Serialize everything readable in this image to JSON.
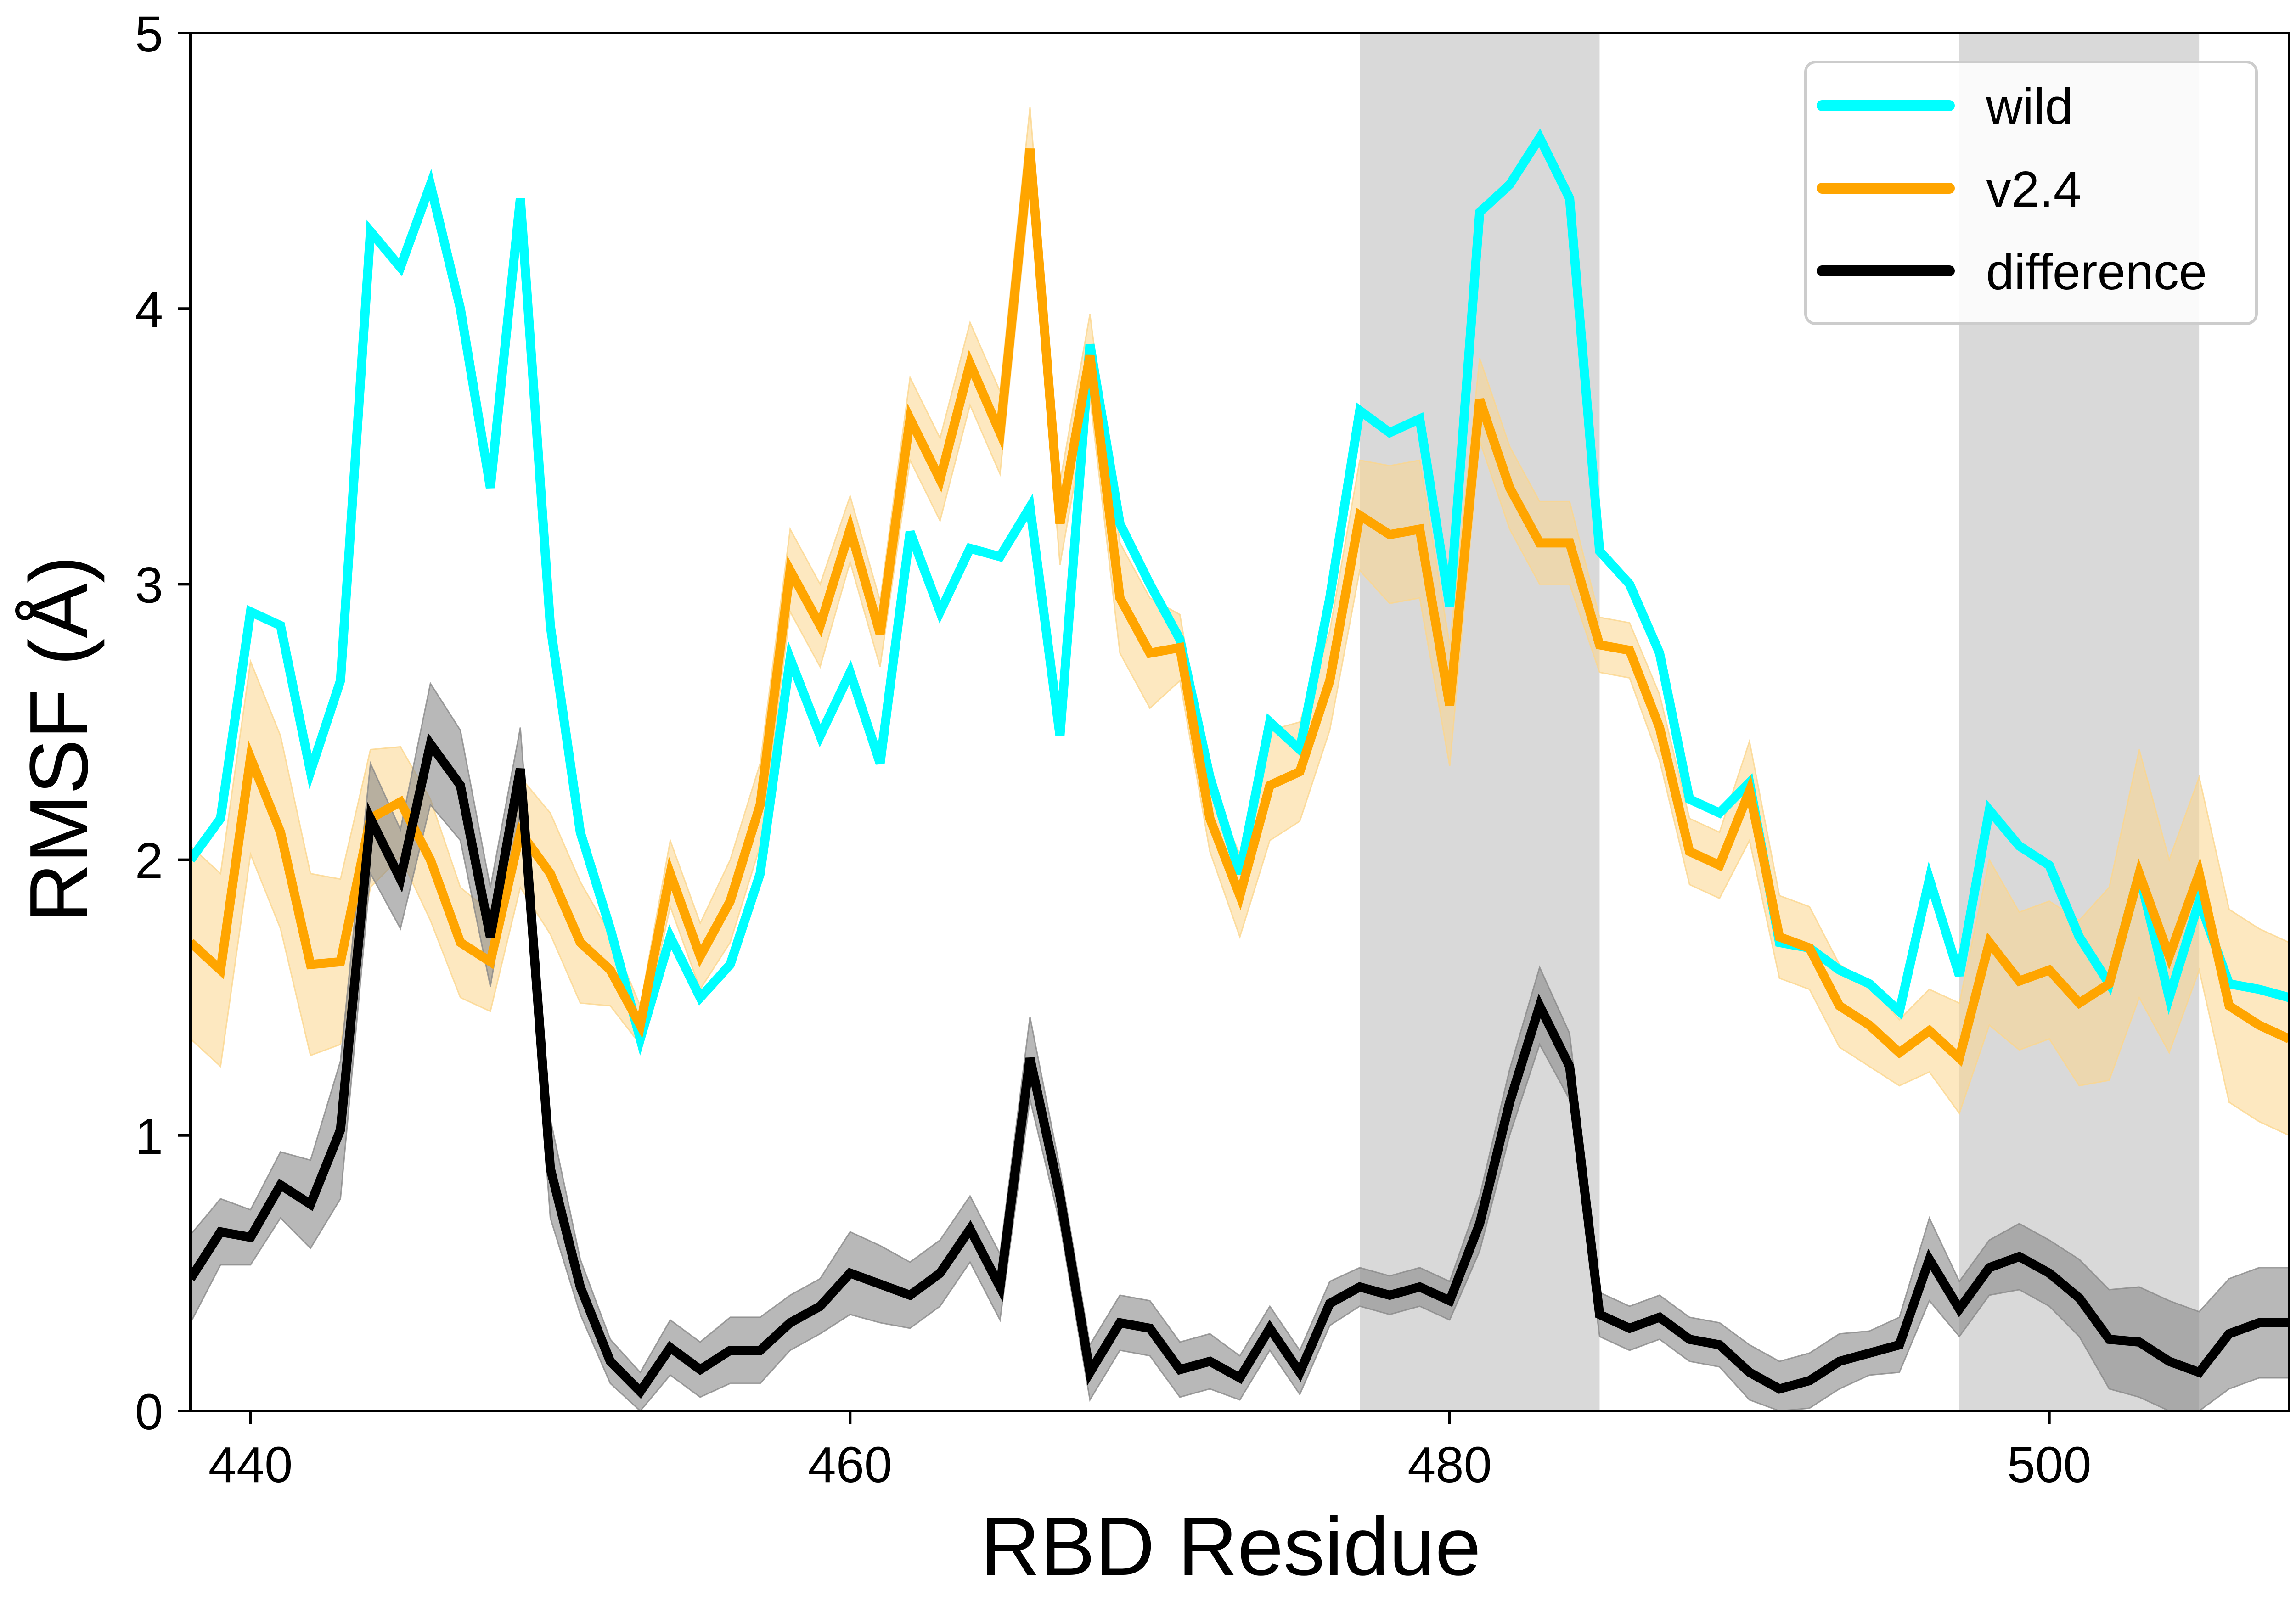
{
  "chart_data": {
    "type": "line",
    "xlabel": "RBD Residue",
    "ylabel": "RMSF (Å)",
    "xlim": [
      438,
      508
    ],
    "ylim": [
      0,
      5
    ],
    "x_ticks": [
      440,
      460,
      480,
      500
    ],
    "y_ticks": [
      0,
      1,
      2,
      3,
      4,
      5
    ],
    "grid": false,
    "legend_position": "top-right",
    "shaded_regions": [
      {
        "x_start": 477,
        "x_end": 485
      },
      {
        "x_start": 497,
        "x_end": 505
      }
    ],
    "x": [
      438,
      439,
      440,
      441,
      442,
      443,
      444,
      445,
      446,
      447,
      448,
      449,
      450,
      451,
      452,
      453,
      454,
      455,
      456,
      457,
      458,
      459,
      460,
      461,
      462,
      463,
      464,
      465,
      466,
      467,
      468,
      469,
      470,
      471,
      472,
      473,
      474,
      475,
      476,
      477,
      478,
      479,
      480,
      481,
      482,
      483,
      484,
      485,
      486,
      487,
      488,
      489,
      490,
      491,
      492,
      493,
      494,
      495,
      496,
      497,
      498,
      499,
      500,
      501,
      502,
      503,
      504,
      505,
      506,
      507,
      508
    ],
    "series": [
      {
        "name": "wild",
        "color": "#00ffff",
        "values": [
          2.0,
          2.15,
          2.9,
          2.85,
          2.32,
          2.65,
          4.28,
          4.15,
          4.45,
          4.0,
          3.35,
          4.4,
          2.85,
          2.1,
          1.75,
          1.35,
          1.72,
          1.5,
          1.62,
          1.95,
          2.73,
          2.45,
          2.68,
          2.35,
          3.19,
          2.9,
          3.13,
          3.1,
          3.28,
          2.45,
          3.87,
          3.22,
          3.0,
          2.8,
          2.3,
          1.95,
          2.5,
          2.4,
          2.95,
          3.63,
          3.55,
          3.6,
          2.92,
          4.35,
          4.45,
          4.62,
          4.4,
          3.12,
          3.0,
          2.75,
          2.22,
          2.17,
          2.28,
          1.7,
          1.68,
          1.6,
          1.55,
          1.45,
          1.93,
          1.58,
          2.18,
          2.05,
          1.98,
          1.72,
          1.55,
          1.95,
          1.5,
          1.85,
          1.55,
          1.53,
          1.5
        ]
      },
      {
        "name": "v2.4",
        "color": "#ffa500",
        "band_color": "#fbd68c",
        "values": [
          1.7,
          1.6,
          2.37,
          2.1,
          1.62,
          1.63,
          2.15,
          2.21,
          2.0,
          1.7,
          1.63,
          2.1,
          1.95,
          1.7,
          1.6,
          1.4,
          1.95,
          1.65,
          1.85,
          2.2,
          3.05,
          2.85,
          3.2,
          2.82,
          3.6,
          3.38,
          3.8,
          3.55,
          4.58,
          3.22,
          3.83,
          2.95,
          2.75,
          2.77,
          2.15,
          1.87,
          2.27,
          2.32,
          2.65,
          3.25,
          3.18,
          3.2,
          2.56,
          3.67,
          3.35,
          3.15,
          3.15,
          2.78,
          2.76,
          2.48,
          2.03,
          1.98,
          2.25,
          1.72,
          1.68,
          1.47,
          1.4,
          1.3,
          1.38,
          1.28,
          1.7,
          1.56,
          1.6,
          1.48,
          1.55,
          1.95,
          1.65,
          1.95,
          1.47,
          1.4,
          1.35
        ],
        "band_halfwidth": [
          0.35,
          0.35,
          0.35,
          0.35,
          0.33,
          0.3,
          0.25,
          0.2,
          0.22,
          0.2,
          0.18,
          0.2,
          0.22,
          0.22,
          0.13,
          0.07,
          0.12,
          0.12,
          0.15,
          0.15,
          0.15,
          0.15,
          0.12,
          0.12,
          0.15,
          0.15,
          0.15,
          0.15,
          0.15,
          0.15,
          0.15,
          0.2,
          0.2,
          0.12,
          0.12,
          0.15,
          0.2,
          0.18,
          0.18,
          0.2,
          0.25,
          0.25,
          0.22,
          0.15,
          0.15,
          0.15,
          0.15,
          0.1,
          0.1,
          0.12,
          0.12,
          0.12,
          0.18,
          0.15,
          0.15,
          0.15,
          0.15,
          0.12,
          0.15,
          0.2,
          0.3,
          0.25,
          0.25,
          0.3,
          0.35,
          0.45,
          0.35,
          0.35,
          0.35,
          0.35,
          0.35
        ]
      },
      {
        "name": "difference",
        "color": "#000000",
        "band_color": "#888888",
        "values": [
          0.48,
          0.65,
          0.63,
          0.82,
          0.75,
          1.02,
          2.15,
          1.93,
          2.42,
          2.27,
          1.72,
          2.33,
          0.88,
          0.45,
          0.18,
          0.07,
          0.23,
          0.15,
          0.22,
          0.22,
          0.32,
          0.38,
          0.5,
          0.46,
          0.42,
          0.5,
          0.66,
          0.45,
          1.28,
          0.78,
          0.14,
          0.32,
          0.3,
          0.15,
          0.18,
          0.12,
          0.3,
          0.14,
          0.39,
          0.45,
          0.42,
          0.45,
          0.4,
          0.68,
          1.12,
          1.47,
          1.25,
          0.35,
          0.3,
          0.34,
          0.26,
          0.24,
          0.14,
          0.08,
          0.11,
          0.18,
          0.21,
          0.24,
          0.55,
          0.37,
          0.52,
          0.56,
          0.5,
          0.41,
          0.26,
          0.25,
          0.18,
          0.14,
          0.28,
          0.32,
          0.32
        ],
        "band_halfwidth": [
          0.16,
          0.12,
          0.1,
          0.12,
          0.16,
          0.25,
          0.2,
          0.18,
          0.22,
          0.2,
          0.18,
          0.15,
          0.18,
          0.1,
          0.08,
          0.07,
          0.1,
          0.1,
          0.12,
          0.12,
          0.1,
          0.1,
          0.15,
          0.14,
          0.12,
          0.12,
          0.12,
          0.12,
          0.15,
          0.1,
          0.1,
          0.1,
          0.1,
          0.1,
          0.1,
          0.08,
          0.08,
          0.08,
          0.08,
          0.07,
          0.07,
          0.07,
          0.07,
          0.1,
          0.12,
          0.14,
          0.12,
          0.08,
          0.08,
          0.08,
          0.08,
          0.08,
          0.1,
          0.1,
          0.1,
          0.1,
          0.08,
          0.1,
          0.15,
          0.1,
          0.1,
          0.12,
          0.12,
          0.14,
          0.18,
          0.2,
          0.22,
          0.22,
          0.2,
          0.2,
          0.2
        ]
      }
    ]
  }
}
